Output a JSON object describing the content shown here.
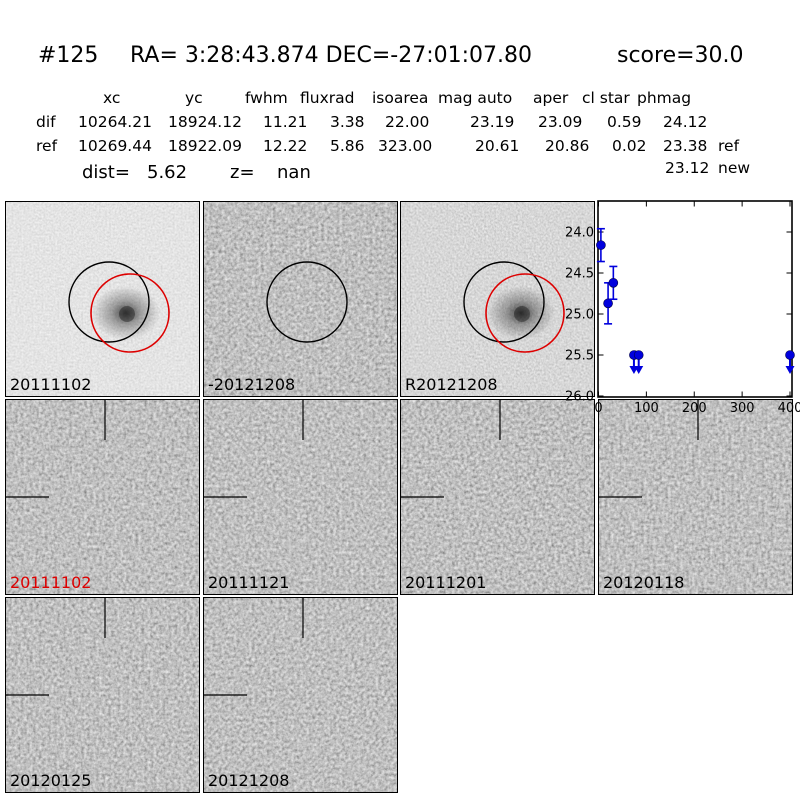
{
  "title": {
    "id": "#125",
    "coords": "RA= 3:28:43.874 DEC=-27:01:07.80",
    "score": "score=30.0"
  },
  "photometry": {
    "columns": [
      "xc",
      "yc",
      "fwhm",
      "fluxrad",
      "isoarea",
      "mag auto",
      "aper",
      "cl star",
      "phmag"
    ],
    "rows": [
      {
        "label": "dif",
        "values": [
          "10264.21",
          "18924.12",
          "11.21",
          "3.38",
          "22.00",
          "23.19",
          "23.09",
          "0.59",
          "24.12"
        ],
        "suffix": ""
      },
      {
        "label": "ref",
        "values": [
          "10269.44",
          "18922.09",
          "12.22",
          "5.86",
          "323.00",
          "20.61",
          "20.86",
          "0.02",
          "23.38"
        ],
        "suffix": "ref"
      }
    ],
    "extra": {
      "value": "23.12",
      "suffix": "new"
    },
    "dist_label": "dist=",
    "dist_value": "5.62",
    "z_label": "z=",
    "z_value": "nan"
  },
  "palette": {
    "black": "#000000",
    "red": "#dd0000",
    "blue": "#0000dd",
    "background": "#ffffff"
  },
  "cutouts": [
    {
      "label": "20111102",
      "label_color": "#000000",
      "row": 0,
      "col": 0,
      "tone": "light",
      "blob": true,
      "circles": "black+red",
      "crosshair": false
    },
    {
      "label": "-20121208",
      "label_color": "#000000",
      "row": 0,
      "col": 1,
      "tone": "mid",
      "blob": false,
      "circles": "black",
      "crosshair": false
    },
    {
      "label": "R20121208",
      "label_color": "#000000",
      "row": 0,
      "col": 2,
      "tone": "light2",
      "blob": true,
      "circles": "black+red",
      "crosshair": false
    },
    {
      "label": "20111102",
      "label_color": "#dd0000",
      "row": 1,
      "col": 0,
      "tone": "mid",
      "blob": false,
      "circles": "none",
      "crosshair": true
    },
    {
      "label": "20111121",
      "label_color": "#000000",
      "row": 1,
      "col": 1,
      "tone": "mid",
      "blob": false,
      "circles": "none",
      "crosshair": true
    },
    {
      "label": "20111201",
      "label_color": "#000000",
      "row": 1,
      "col": 2,
      "tone": "mid",
      "blob": false,
      "circles": "none",
      "crosshair": true
    },
    {
      "label": "20120118",
      "label_color": "#000000",
      "row": 1,
      "col": 3,
      "tone": "mid",
      "blob": false,
      "circles": "none",
      "crosshair": true
    },
    {
      "label": "20120125",
      "label_color": "#000000",
      "row": 2,
      "col": 0,
      "tone": "mid",
      "blob": false,
      "circles": "none",
      "crosshair": true
    },
    {
      "label": "20121208",
      "label_color": "#000000",
      "row": 2,
      "col": 1,
      "tone": "mid",
      "blob": false,
      "circles": "none",
      "crosshair": true
    }
  ],
  "chart_data": {
    "type": "scatter",
    "title": "",
    "xlabel": "",
    "ylabel": "",
    "xlim": [
      0,
      404
    ],
    "ylim": [
      26.0,
      23.6
    ],
    "y_inverted": true,
    "grid": false,
    "xticks": [
      0,
      100,
      200,
      300,
      400
    ],
    "yticks": [
      "24.0",
      "24.5",
      "25.0",
      "25.5",
      "26.0"
    ],
    "legend": null,
    "series": [
      {
        "name": "difference-photometry-lightcurve",
        "color": "#0000dd",
        "marker": "filled-circle",
        "points": [
          {
            "x": 5,
            "mag": 24.16,
            "err": 0.2,
            "upper_limit": false
          },
          {
            "x": 20,
            "mag": 24.87,
            "err": 0.25,
            "upper_limit": false
          },
          {
            "x": 31,
            "mag": 24.62,
            "err": 0.2,
            "upper_limit": false
          },
          {
            "x": 74,
            "mag": 25.5,
            "err": 0,
            "upper_limit": true
          },
          {
            "x": 84,
            "mag": 25.5,
            "err": 0,
            "upper_limit": true
          },
          {
            "x": 400,
            "mag": 25.5,
            "err": 0,
            "upper_limit": true
          }
        ]
      }
    ]
  }
}
